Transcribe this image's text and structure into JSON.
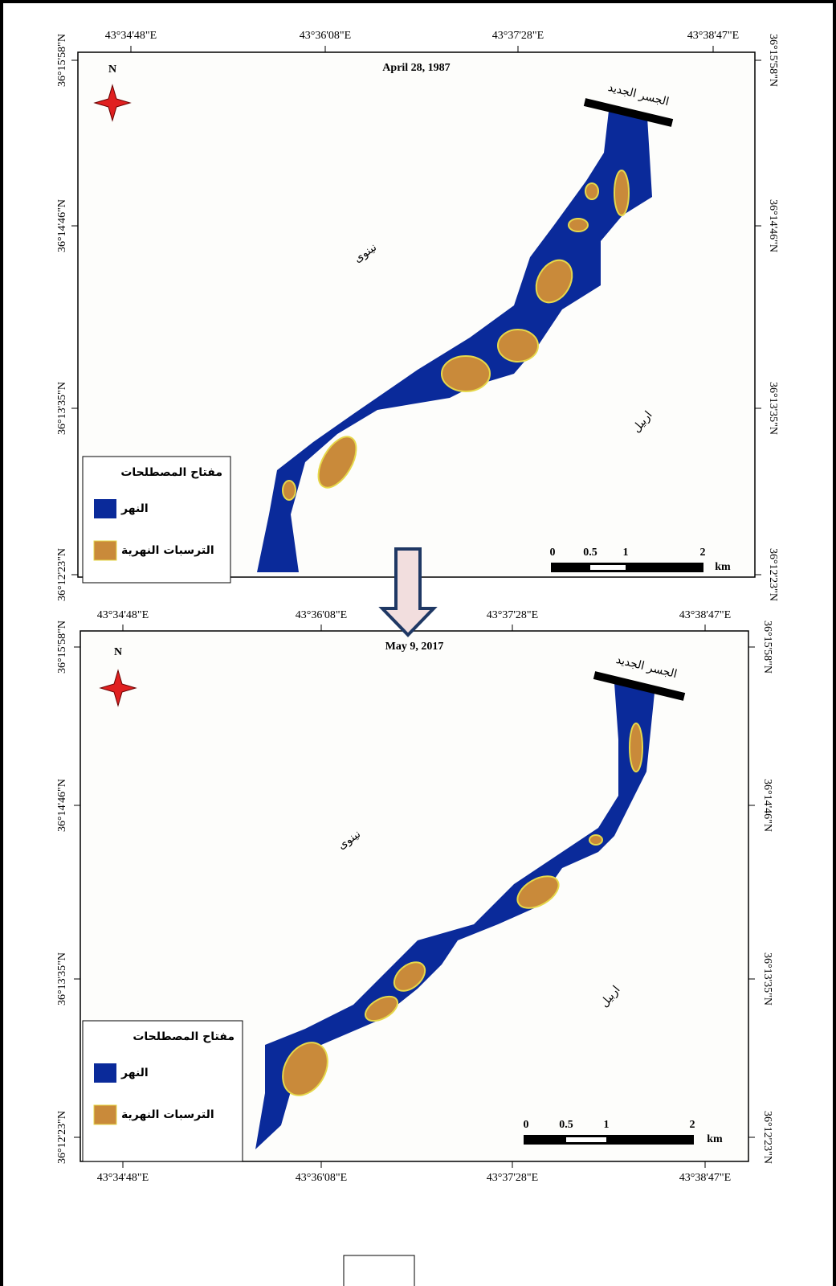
{
  "panels": [
    {
      "title": "April 28, 1987",
      "top_lon_labels": [
        "43°34'48\"E",
        "43°36'08\"E",
        "43°37'28\"E",
        "43°38'47\"E"
      ],
      "left_lat_labels": [
        "36°15'58\"N",
        "36°14'46\"N",
        "36°13'35\"N",
        "36°12'23\"N"
      ],
      "right_lat_labels": [
        "36°15'58\"N",
        "36°14'46\"N",
        "36°13'35\"N",
        "36°12'23\"N"
      ],
      "north": "N",
      "bridge": "الجسر الجديد",
      "west_region": "نينوى",
      "east_region": "اربيل",
      "legend": {
        "title": "مفتاح المصطلحات",
        "items": [
          "النهر",
          "الترسبات النهرية"
        ]
      },
      "scale": {
        "labels": [
          "0",
          "0.5",
          "1",
          "2"
        ],
        "unit": "km"
      }
    },
    {
      "title": "May 9, 2017",
      "top_lon_labels": [
        "43°34'48\"E",
        "43°36'08\"E",
        "43°37'28\"E",
        "43°38'47\"E"
      ],
      "bottom_lon_labels": [
        "43°34'48\"E",
        "43°36'08\"E",
        "43°37'28\"E",
        "43°38'47\"E"
      ],
      "left_lat_labels": [
        "36°15'58\"N",
        "36°14'46\"N",
        "36°13'35\"N",
        "36°12'23\"N"
      ],
      "right_lat_labels": [
        "36°15'58\"N",
        "36°14'46\"N",
        "36°13'35\"N",
        "36°12'23\"N"
      ],
      "north": "N",
      "bridge": "الجسر الجديد",
      "west_region": "نينوى",
      "east_region": "اربيل",
      "legend": {
        "title": "مفتاح المصطلحات",
        "items": [
          "النهر",
          "الترسبات النهرية"
        ]
      },
      "scale": {
        "labels": [
          "0",
          "0.5",
          "1",
          "2"
        ],
        "unit": "km"
      }
    }
  ]
}
